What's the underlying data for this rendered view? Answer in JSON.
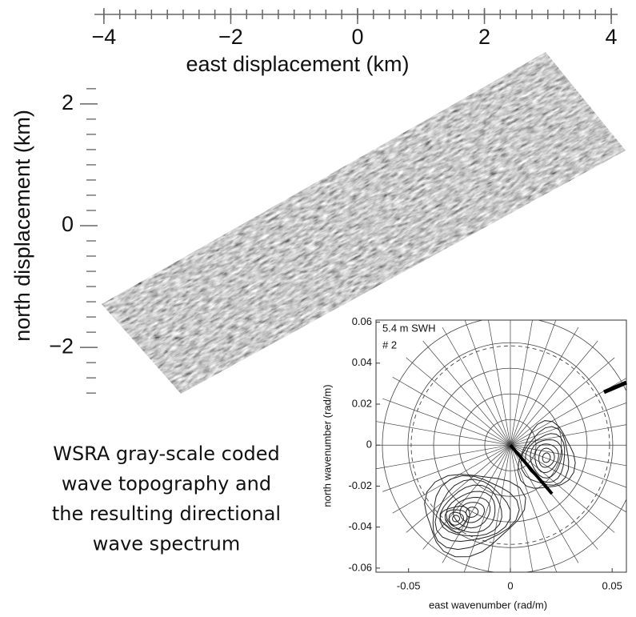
{
  "chart_data": [
    {
      "type": "image",
      "xlabel": "east displacement (km)",
      "ylabel": "north displacement (km)",
      "xlim": [
        -4.15,
        4.1
      ],
      "xticks": [
        {
          "value": -4,
          "label": "−4"
        },
        {
          "value": -2,
          "label": "−2"
        },
        0,
        2,
        4
      ],
      "xminorticks": [
        -4,
        -3.75,
        -3.5,
        -3.25,
        -3,
        -2.75,
        -2.5,
        -2.25,
        -2,
        -1.75,
        -1.5,
        -1.25,
        -1,
        -0.75,
        -0.5,
        -0.25,
        0,
        0.25,
        0.5,
        0.75,
        1,
        1.25,
        1.5,
        1.75,
        2,
        2.25,
        2.5,
        2.75,
        3,
        3.25,
        3.5,
        3.75,
        4
      ],
      "ylim": [
        -2.8,
        2.55
      ],
      "yticks": [
        2,
        0,
        {
          "value": -2,
          "label": "−2"
        }
      ],
      "yminorticks": [
        2.25,
        1.75,
        1.5,
        1.25,
        1,
        0.75,
        0.5,
        0.25,
        -0.25,
        -0.5,
        -0.75,
        -1,
        -1.25,
        -1.5,
        -1.75,
        -2.25,
        -2.5,
        -2.75
      ]
    },
    {
      "type": "polar-contour",
      "xlabel": "east wavenumber (rad/m)",
      "ylabel": "north wavenumber (rad/m)",
      "annotations": [
        "5.4 m SWH",
        "# 2"
      ],
      "xlim": [
        -0.066,
        0.057
      ],
      "xticks": [
        -0.05,
        0,
        0.05
      ],
      "ylim": [
        -0.062,
        0.061
      ],
      "yticks": [
        0.06,
        0.04,
        0.02,
        0,
        -0.02,
        -0.04,
        -0.06
      ]
    }
  ],
  "caption_lines": [
    "WSRA gray-scale coded",
    "wave topography and",
    "the resulting directional",
    "wave spectrum"
  ]
}
